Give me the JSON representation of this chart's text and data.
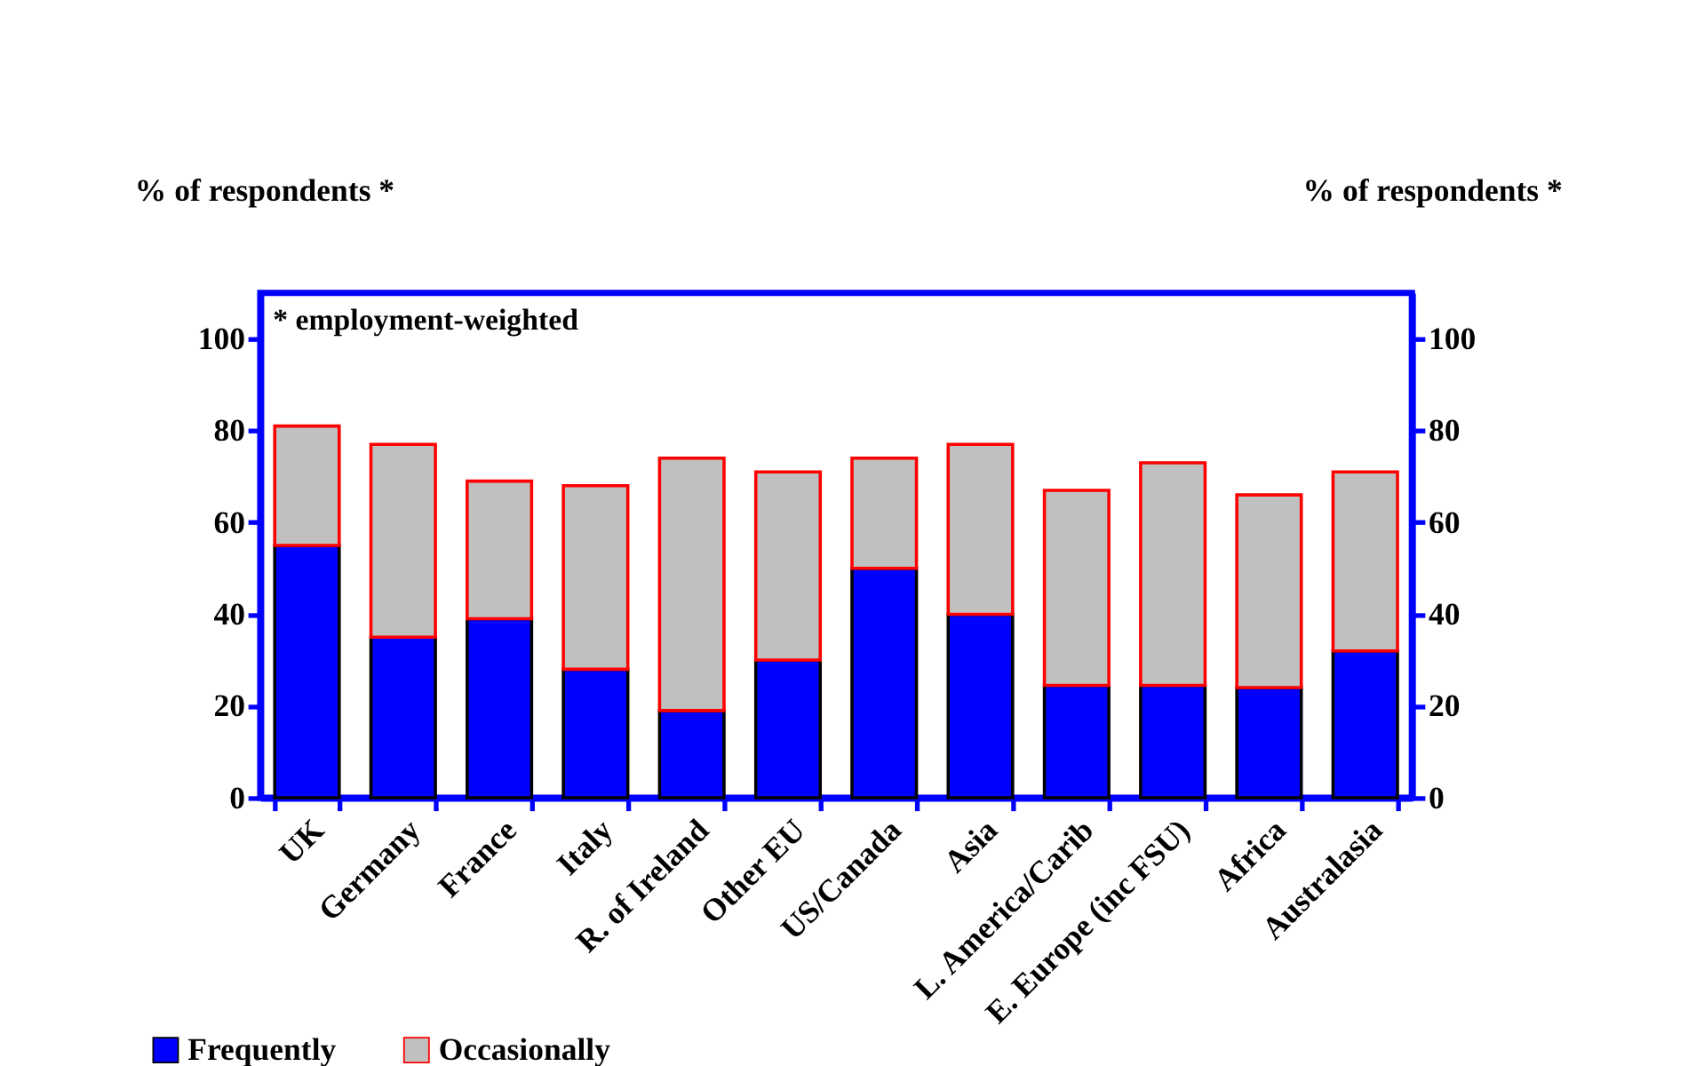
{
  "chart_data": {
    "type": "bar",
    "stacked": true,
    "ylabel": "% of respondents *",
    "y2label": "% of respondents *",
    "annotations": [
      "* employment-weighted"
    ],
    "categories": [
      "UK",
      "Germany",
      "France",
      "Italy",
      "R. of Ireland",
      "Other EU",
      "US/Canada",
      "Asia",
      "L. America/Carib",
      "E. Europe (inc FSU)",
      "Africa",
      "Australasia"
    ],
    "series": [
      {
        "name": "Frequently",
        "color": "#0000ff",
        "values": [
          55,
          35,
          39,
          28,
          19,
          30,
          50,
          40,
          24.5,
          24.5,
          24,
          32
        ]
      },
      {
        "name": "Occasionally",
        "color": "#c0c0c0",
        "values": [
          26,
          42,
          30,
          40,
          55,
          41,
          24,
          37,
          42.5,
          48.5,
          42,
          39
        ]
      }
    ],
    "ylim": [
      0,
      110
    ],
    "yticks": [
      0,
      20,
      40,
      60,
      80,
      100
    ],
    "y2lim": [
      0,
      110
    ],
    "y2ticks": [
      0,
      20,
      40,
      60,
      80,
      100
    ],
    "grid": false,
    "legend": "bottom left"
  }
}
